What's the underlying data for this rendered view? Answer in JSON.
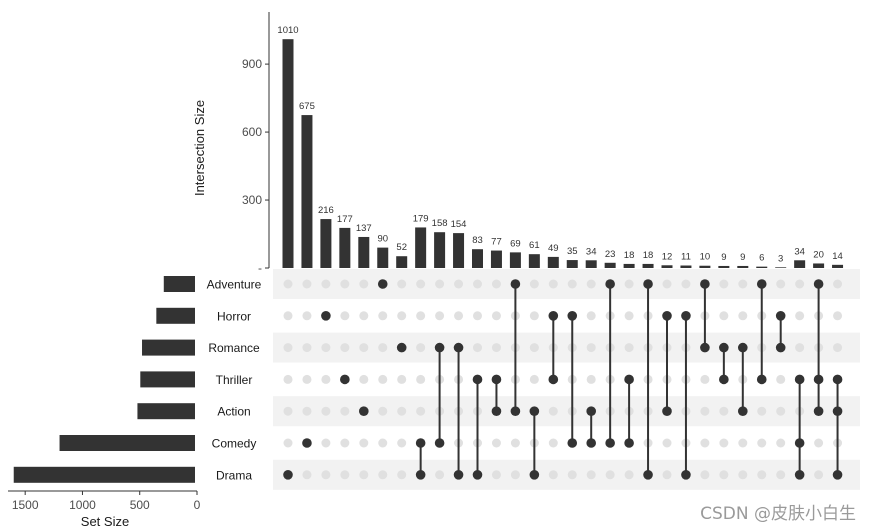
{
  "chart_data": {
    "type": "upset",
    "bar_color": "#333333",
    "dot_inactive_color": "#e0e0e0",
    "stripe_color": "#f2f2f2",
    "top": {
      "ylabel": "Intersection Size",
      "ylim": [
        0,
        1130
      ],
      "yticks": [
        0,
        300,
        600,
        900
      ],
      "ytick_labels": [
        "",
        "300",
        "600",
        "900"
      ]
    },
    "left": {
      "xlabel": "Set Size",
      "xlim": [
        1650,
        0
      ],
      "xticks": [
        1500,
        1000,
        500,
        0
      ],
      "xtick_labels": [
        "1500",
        "1000",
        "500",
        "0"
      ]
    },
    "sets": [
      {
        "name": "Adventure",
        "size": 290
      },
      {
        "name": "Horror",
        "size": 355
      },
      {
        "name": "Romance",
        "size": 480
      },
      {
        "name": "Thriller",
        "size": 495
      },
      {
        "name": "Action",
        "size": 520
      },
      {
        "name": "Comedy",
        "size": 1200
      },
      {
        "name": "Drama",
        "size": 1600
      }
    ],
    "intersections": [
      {
        "value": 1010,
        "label": "1010",
        "members": [
          "Drama"
        ]
      },
      {
        "value": 675,
        "label": "675",
        "members": [
          "Comedy"
        ]
      },
      {
        "value": 216,
        "label": "216",
        "members": [
          "Horror"
        ]
      },
      {
        "value": 177,
        "label": "177",
        "members": [
          "Thriller"
        ]
      },
      {
        "value": 137,
        "label": "137",
        "members": [
          "Action"
        ]
      },
      {
        "value": 90,
        "label": "90",
        "members": [
          "Adventure"
        ]
      },
      {
        "value": 52,
        "label": "52",
        "members": [
          "Romance"
        ]
      },
      {
        "value": 179,
        "label": "179",
        "members": [
          "Comedy",
          "Drama"
        ]
      },
      {
        "value": 158,
        "label": "158",
        "members": [
          "Romance",
          "Comedy"
        ]
      },
      {
        "value": 154,
        "label": "154",
        "members": [
          "Romance",
          "Drama"
        ]
      },
      {
        "value": 83,
        "label": "83",
        "members": [
          "Thriller",
          "Drama"
        ]
      },
      {
        "value": 77,
        "label": "77",
        "members": [
          "Thriller",
          "Action"
        ]
      },
      {
        "value": 69,
        "label": "69",
        "members": [
          "Adventure",
          "Action"
        ]
      },
      {
        "value": 61,
        "label": "61",
        "members": [
          "Action",
          "Drama"
        ]
      },
      {
        "value": 49,
        "label": "49",
        "members": [
          "Horror",
          "Thriller"
        ]
      },
      {
        "value": 35,
        "label": "35",
        "members": [
          "Horror",
          "Comedy"
        ]
      },
      {
        "value": 34,
        "label": "34",
        "members": [
          "Action",
          "Comedy"
        ]
      },
      {
        "value": 23,
        "label": "23",
        "members": [
          "Adventure",
          "Comedy"
        ]
      },
      {
        "value": 18,
        "label": "18",
        "members": [
          "Thriller",
          "Comedy"
        ]
      },
      {
        "value": 18,
        "label": "18",
        "members": [
          "Adventure",
          "Drama"
        ]
      },
      {
        "value": 12,
        "label": "12",
        "members": [
          "Horror",
          "Action"
        ]
      },
      {
        "value": 11,
        "label": "11",
        "members": [
          "Horror",
          "Drama"
        ]
      },
      {
        "value": 10,
        "label": "10",
        "members": [
          "Adventure",
          "Romance"
        ]
      },
      {
        "value": 9,
        "label": "9",
        "members": [
          "Romance",
          "Thriller"
        ]
      },
      {
        "value": 9,
        "label": "9",
        "members": [
          "Romance",
          "Action"
        ]
      },
      {
        "value": 6,
        "label": "6",
        "members": [
          "Adventure",
          "Thriller"
        ]
      },
      {
        "value": 3,
        "label": "3",
        "members": [
          "Horror",
          "Romance"
        ]
      },
      {
        "value": 34,
        "label": "34",
        "members": [
          "Thriller",
          "Comedy",
          "Drama"
        ]
      },
      {
        "value": 20,
        "label": "20",
        "members": [
          "Adventure",
          "Thriller",
          "Action"
        ]
      },
      {
        "value": 14,
        "label": "14",
        "members": [
          "Thriller",
          "Action",
          "Drama"
        ]
      }
    ]
  },
  "watermark": "CSDN @皮肤小白生"
}
